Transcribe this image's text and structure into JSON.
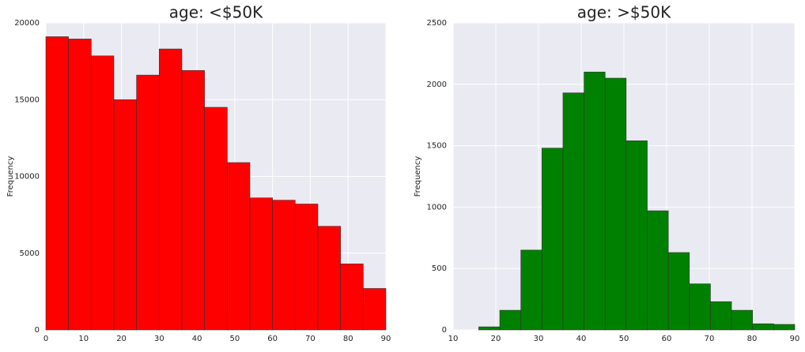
{
  "chart_data": [
    {
      "type": "histogram",
      "title": "age: <$50K",
      "ylabel": "Frequency",
      "color": "#ff0000",
      "grid": true,
      "bins": [
        0,
        6,
        12,
        18,
        24,
        30,
        36,
        42,
        48,
        54,
        60,
        66,
        72,
        78,
        84,
        90
      ],
      "values": [
        19100,
        18950,
        17850,
        15000,
        16600,
        18300,
        16900,
        14500,
        10900,
        8600,
        8450,
        8200,
        6750,
        4300,
        2700
      ],
      "xlim": [
        0,
        90
      ],
      "xticks": [
        0,
        10,
        20,
        30,
        40,
        50,
        60,
        70,
        80,
        90
      ],
      "ylim": [
        0,
        20000
      ],
      "yticks": [
        0,
        5000,
        10000,
        15000,
        20000
      ]
    },
    {
      "type": "histogram",
      "title": "age: >$50K",
      "ylabel": "Frequency",
      "color": "#008000",
      "grid": true,
      "bins": [
        16,
        20.93,
        25.87,
        30.8,
        35.73,
        40.67,
        45.6,
        50.53,
        55.47,
        60.4,
        65.33,
        70.27,
        75.2,
        80.13,
        85.07,
        90
      ],
      "values": [
        25,
        160,
        650,
        1480,
        1930,
        2100,
        2050,
        1540,
        970,
        630,
        375,
        230,
        160,
        50,
        45
      ],
      "xlim": [
        10,
        90
      ],
      "xticks": [
        10,
        20,
        30,
        40,
        50,
        60,
        70,
        80,
        90
      ],
      "ylim": [
        0,
        2500
      ],
      "yticks": [
        0,
        500,
        1000,
        1500,
        2000,
        2500
      ]
    }
  ]
}
